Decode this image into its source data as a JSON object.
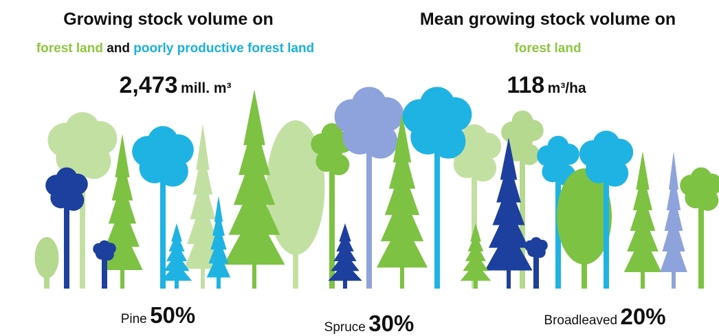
{
  "left": {
    "title": "Growing stock volume on",
    "subtitle_parts": [
      "forest land",
      "and",
      "poorly productive forest land"
    ],
    "value": "2,473",
    "unit": "mill. m³"
  },
  "right": {
    "title": "Mean growing stock volume on",
    "subtitle": "forest land",
    "value": "118",
    "unit": "m³/ha"
  },
  "species": [
    {
      "name": "Pine",
      "share": "50%"
    },
    {
      "name": "Spruce",
      "share": "30%"
    },
    {
      "name": "Broadleaved",
      "share": "20%"
    }
  ]
}
